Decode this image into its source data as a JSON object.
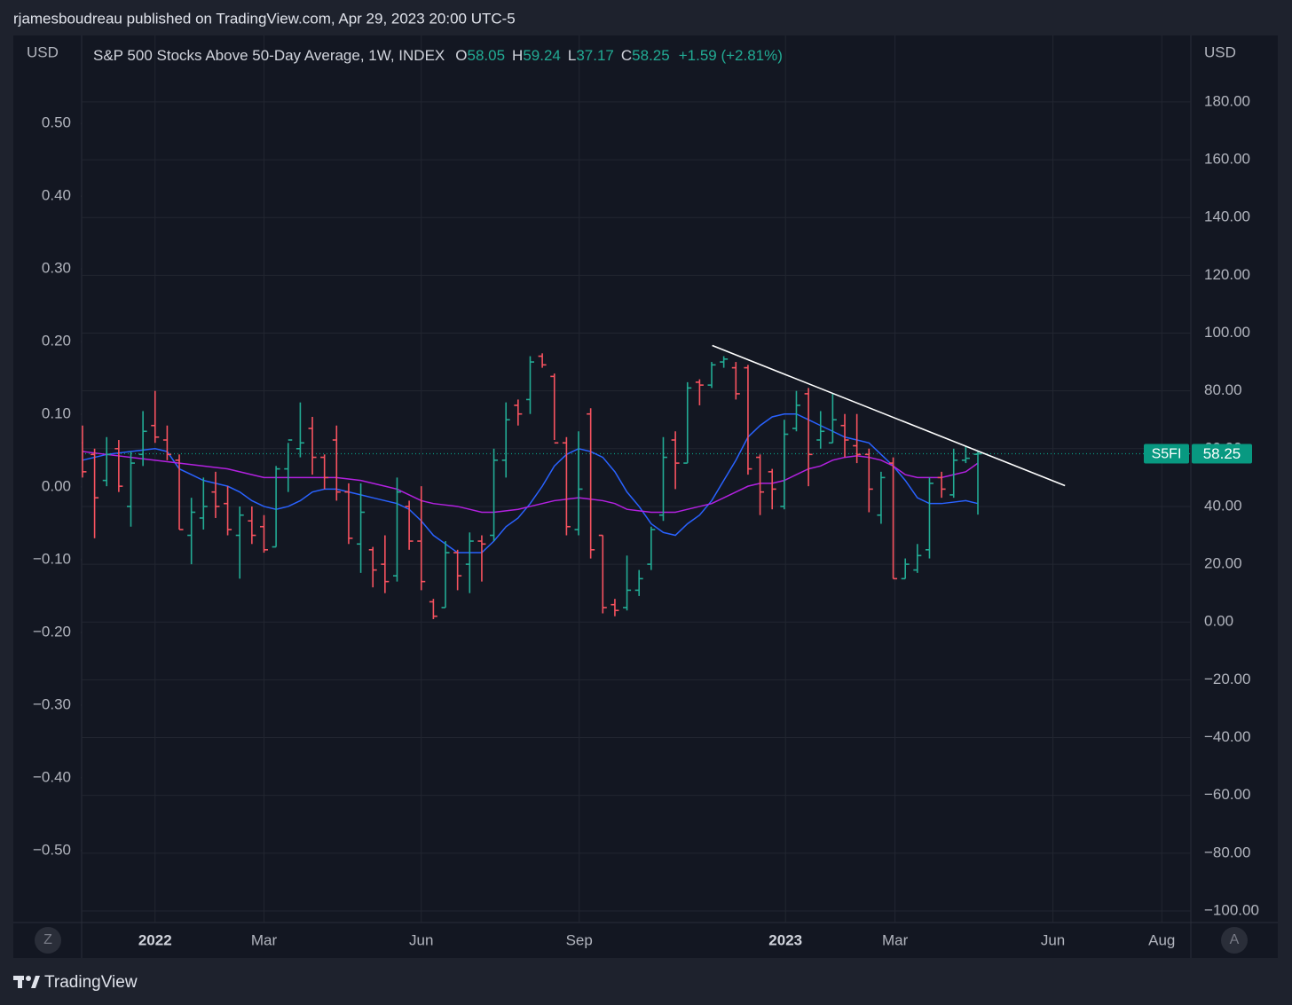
{
  "header": "rjamesboudreau published on TradingView.com, Apr 29, 2023 20:00 UTC-5",
  "footer": "TradingView",
  "buttons": {
    "left": "Z",
    "right": "A"
  },
  "chart_data": {
    "type": "ohlc",
    "legend": {
      "title": "S&P 500 Stocks Above 50-Day Average, 1W, INDEX",
      "items": [
        {
          "label": "O",
          "value": 58.05
        },
        {
          "label": "H",
          "value": 59.24
        },
        {
          "label": "L",
          "value": 37.17
        },
        {
          "label": "C",
          "value": 58.25
        }
      ],
      "change": "+1.59 (+2.81%)"
    },
    "y_label": "USD",
    "y2_label": "USD",
    "categories": [
      null,
      null,
      null,
      null,
      null,
      null,
      null,
      null,
      null,
      null,
      null,
      null,
      null,
      null,
      null,
      null,
      null,
      null,
      null,
      null,
      null,
      null,
      null,
      null,
      null,
      null,
      null,
      null,
      null,
      null,
      null,
      null,
      null,
      null,
      null,
      null,
      null,
      null,
      null,
      null,
      null,
      null,
      null,
      null,
      null,
      null,
      null,
      null,
      null,
      null,
      null,
      null,
      null,
      null,
      null,
      null,
      null,
      null,
      null,
      null,
      null,
      null,
      null,
      null,
      null,
      null,
      null,
      null,
      null,
      null,
      null,
      null,
      null,
      null,
      null
    ],
    "open": [
      62,
      58,
      49,
      60,
      40,
      58,
      68,
      63,
      56,
      30,
      36,
      45,
      41,
      30,
      35,
      33,
      26,
      53,
      60,
      67,
      57,
      63,
      45,
      27,
      25,
      20,
      16,
      40,
      28,
      7,
      5,
      24,
      20,
      28,
      30,
      56,
      75,
      77,
      92,
      85,
      62,
      32,
      72,
      30,
      6,
      5,
      11,
      20,
      37,
      63,
      55,
      83,
      82,
      90,
      88,
      88,
      57,
      52,
      40,
      67,
      79,
      63,
      62,
      68,
      61,
      58,
      37,
      55,
      15,
      18,
      25,
      50,
      44,
      56,
      58.05
    ],
    "high": [
      68,
      60,
      64,
      63,
      59,
      73,
      80,
      68,
      58,
      43,
      50,
      52,
      47,
      40,
      40,
      37,
      54,
      62,
      76,
      71,
      58,
      68,
      48,
      48,
      26,
      30,
      50,
      42,
      47,
      8,
      28,
      25,
      31,
      30,
      60,
      76,
      77,
      92,
      93,
      86,
      64,
      66,
      74,
      30,
      8,
      23,
      18,
      33,
      64,
      66,
      83,
      84,
      90,
      92,
      90,
      89,
      58,
      53,
      70,
      80,
      81,
      73,
      79,
      72,
      72,
      60,
      52,
      57,
      22,
      27,
      50,
      52,
      60,
      61,
      59.24
    ],
    "low": [
      50,
      29,
      47,
      45,
      33,
      54,
      62,
      56,
      32,
      20,
      32,
      36,
      30,
      15,
      27,
      24,
      26,
      45,
      57,
      51,
      46,
      42,
      27,
      17,
      12,
      10,
      14,
      25,
      11,
      1,
      5,
      11,
      10,
      14,
      28,
      50,
      68,
      72,
      88,
      63,
      30,
      30,
      22,
      3,
      2,
      4,
      9,
      18,
      35,
      46,
      55,
      75,
      81,
      88,
      77,
      51,
      37,
      39,
      39,
      66,
      47,
      60,
      62,
      57,
      55,
      38,
      34,
      15,
      15,
      17,
      22,
      43,
      43,
      55,
      37.17
    ],
    "close": [
      52,
      43,
      58,
      47,
      55,
      66,
      64,
      58,
      32,
      38,
      40,
      40,
      32,
      37,
      30,
      25,
      53,
      63,
      62,
      57,
      50,
      45,
      29,
      38,
      18,
      14,
      45,
      28,
      14,
      2,
      24,
      16,
      28,
      27,
      56,
      70,
      72,
      90,
      89,
      62,
      33,
      46,
      25,
      5,
      4,
      11,
      15,
      32,
      57,
      55,
      81,
      82,
      89,
      91,
      79,
      53,
      45,
      46,
      65,
      75,
      58,
      66,
      70,
      63,
      58,
      46,
      50,
      15,
      20,
      23,
      48,
      46,
      56,
      56.66,
      58.25
    ],
    "up_color": "#22ab94",
    "down_color": "#f7525f",
    "series": [
      {
        "color": "#2962ff",
        "values": [
          56,
          57,
          58,
          58.5,
          59,
          59.5,
          60,
          59,
          53,
          51,
          49,
          48,
          47,
          45,
          42,
          40,
          39,
          40,
          42,
          45,
          46,
          46,
          45,
          44,
          43,
          42,
          41,
          39,
          35,
          30,
          27,
          24,
          24,
          24,
          28,
          33,
          36,
          41,
          47,
          54,
          58,
          60,
          59,
          57,
          52,
          45,
          40,
          34,
          31,
          30,
          34,
          37,
          42,
          49,
          56,
          64,
          68,
          71,
          72,
          72,
          70,
          68,
          66,
          64,
          63,
          62,
          58,
          54,
          49,
          43,
          41,
          41,
          41.5,
          42,
          41
        ]
      },
      {
        "color": "#b321e0",
        "values": [
          59,
          58.5,
          58,
          57.5,
          57,
          56.5,
          56,
          55.5,
          55,
          54.5,
          54,
          53.5,
          53,
          52,
          51,
          50,
          50,
          50,
          50,
          50,
          50,
          50,
          49.5,
          49,
          48,
          47,
          46,
          44,
          42,
          41,
          40.5,
          40,
          39,
          38,
          38,
          38.5,
          39,
          40,
          41,
          42,
          42.5,
          43,
          42.5,
          42,
          41,
          39,
          38.5,
          38,
          38,
          38,
          39,
          40,
          41,
          43,
          45,
          47,
          48,
          48,
          49,
          51,
          53,
          54,
          56,
          57,
          57.5,
          57,
          56,
          54,
          51,
          50,
          50,
          50,
          51,
          52,
          55
        ]
      }
    ],
    "trendline": {
      "x": [
        52.05,
        81.2
      ],
      "y": [
        95.7,
        47.2
      ],
      "color": "#ffffff"
    },
    "last_price": {
      "name": "S5FI",
      "value": 58.25,
      "value_label": "58.25",
      "color": "#089981"
    },
    "xlim": [
      -0.07,
      91.6
    ],
    "xticks": [
      {
        "value": 6.0,
        "label": "2022",
        "bold": true
      },
      {
        "value": 15.0,
        "label": "Mar"
      },
      {
        "value": 28.0,
        "label": "Jun"
      },
      {
        "value": 41.05,
        "label": "Sep"
      },
      {
        "value": 58.1,
        "label": "2023",
        "bold": true
      },
      {
        "value": 67.15,
        "label": "Mar"
      },
      {
        "value": 80.2,
        "label": "Jun"
      },
      {
        "value": 89.2,
        "label": "Aug"
      }
    ],
    "ylim": [
      -104,
      203
    ],
    "yticks": [
      {
        "value": 180,
        "label": "180.00"
      },
      {
        "value": 160,
        "label": "160.00"
      },
      {
        "value": 140,
        "label": "140.00"
      },
      {
        "value": 120,
        "label": "120.00"
      },
      {
        "value": 100,
        "label": "100.00"
      },
      {
        "value": 80,
        "label": "80.00"
      },
      {
        "value": 60,
        "label": "60.00"
      },
      {
        "value": 40,
        "label": "40.00"
      },
      {
        "value": 20,
        "label": "20.00"
      },
      {
        "value": 0,
        "label": "0.00"
      },
      {
        "value": -20,
        "label": "−20.00"
      },
      {
        "value": -40,
        "label": "−40.00"
      },
      {
        "value": -60,
        "label": "−60.00"
      },
      {
        "value": -80,
        "label": "−80.00"
      },
      {
        "value": -100,
        "label": "−100.00"
      }
    ],
    "y2lim": [
      -0.599,
      0.621
    ],
    "y2ticks": [
      {
        "value": 0.5,
        "label": "0.50"
      },
      {
        "value": 0.4,
        "label": "0.40"
      },
      {
        "value": 0.3,
        "label": "0.30"
      },
      {
        "value": 0.2,
        "label": "0.20"
      },
      {
        "value": 0.1,
        "label": "0.10"
      },
      {
        "value": 0,
        "label": "0.00"
      },
      {
        "value": -0.1,
        "label": "−0.10"
      },
      {
        "value": -0.2,
        "label": "−0.20"
      },
      {
        "value": -0.3,
        "label": "−0.30"
      },
      {
        "value": -0.4,
        "label": "−0.40"
      },
      {
        "value": -0.5,
        "label": "−0.50"
      }
    ],
    "grid": true
  }
}
